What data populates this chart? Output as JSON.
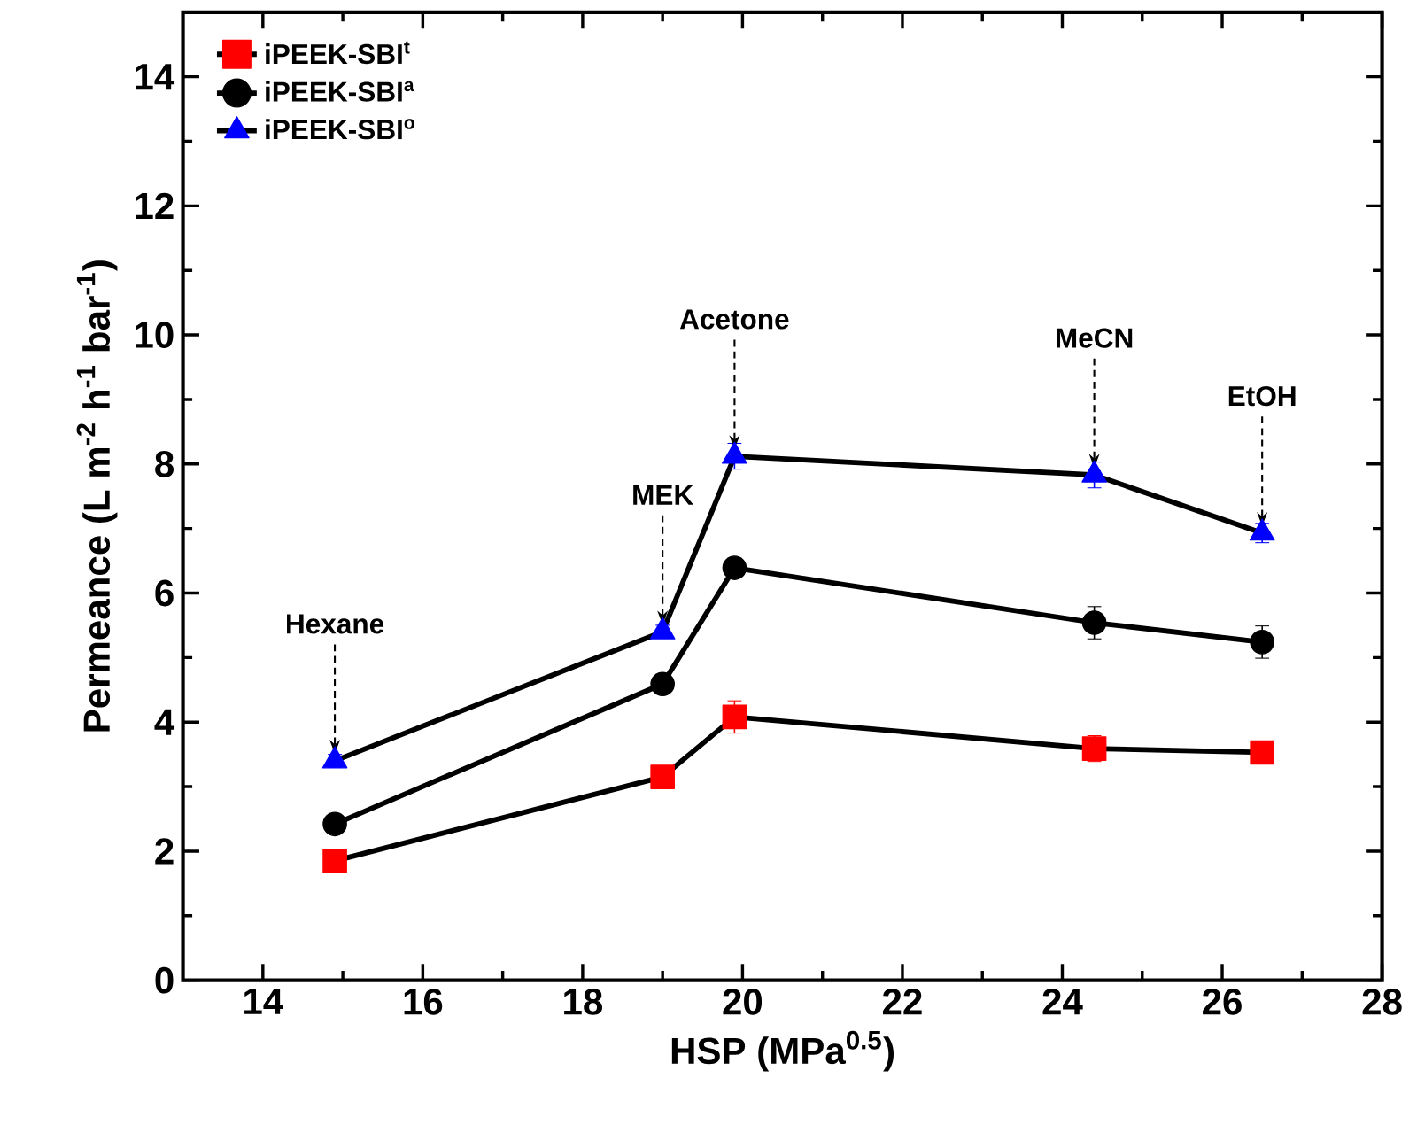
{
  "chart_data": {
    "type": "line",
    "xlabel": "HSP (MPa$^{0.5}$)",
    "ylabel": "Permeance (L m$^{-2}$ h$^{-1}$ bar$^{-1}$)",
    "xlim": [
      13,
      28
    ],
    "ylim": [
      0,
      15
    ],
    "xticks": [
      14,
      16,
      18,
      20,
      22,
      24,
      26,
      28
    ],
    "yticks": [
      0,
      2,
      4,
      6,
      8,
      10,
      12,
      14
    ],
    "legend": "top left",
    "series": [
      {
        "name": "iPEEK-SBI$^{t}$",
        "color": "#ff0000",
        "marker": "square",
        "x": [
          14.9,
          19.0,
          19.9,
          24.4,
          26.5
        ],
        "values": [
          1.85,
          3.15,
          4.08,
          3.59,
          3.53
        ],
        "errors": [
          0.1,
          0.1,
          0.25,
          0.2,
          0.1
        ]
      },
      {
        "name": "iPEEK-SBI$^{a}$",
        "color": "#000000",
        "marker": "circle",
        "x": [
          14.9,
          19.0,
          19.9,
          24.4,
          26.5
        ],
        "values": [
          2.42,
          4.59,
          6.39,
          5.54,
          5.24
        ],
        "errors": [
          0.1,
          0.15,
          0.15,
          0.25,
          0.25
        ]
      },
      {
        "name": "iPEEK-SBI$^{o}$",
        "color": "#0000ff",
        "marker": "triangle",
        "x": [
          14.9,
          19.0,
          19.9,
          24.4,
          26.5
        ],
        "values": [
          3.4,
          5.4,
          8.12,
          7.83,
          6.93
        ],
        "errors": [
          0.1,
          0.1,
          0.2,
          0.2,
          0.15
        ]
      }
    ],
    "annotations": [
      {
        "text": "Hexane",
        "x": 14.9,
        "y": 3.4
      },
      {
        "text": "MEK",
        "x": 19.0,
        "y": 5.4
      },
      {
        "text": "Acetone",
        "x": 19.9,
        "y": 8.12
      },
      {
        "text": "MeCN",
        "x": 24.4,
        "y": 7.83
      },
      {
        "text": "EtOH",
        "x": 26.5,
        "y": 6.93
      }
    ]
  }
}
